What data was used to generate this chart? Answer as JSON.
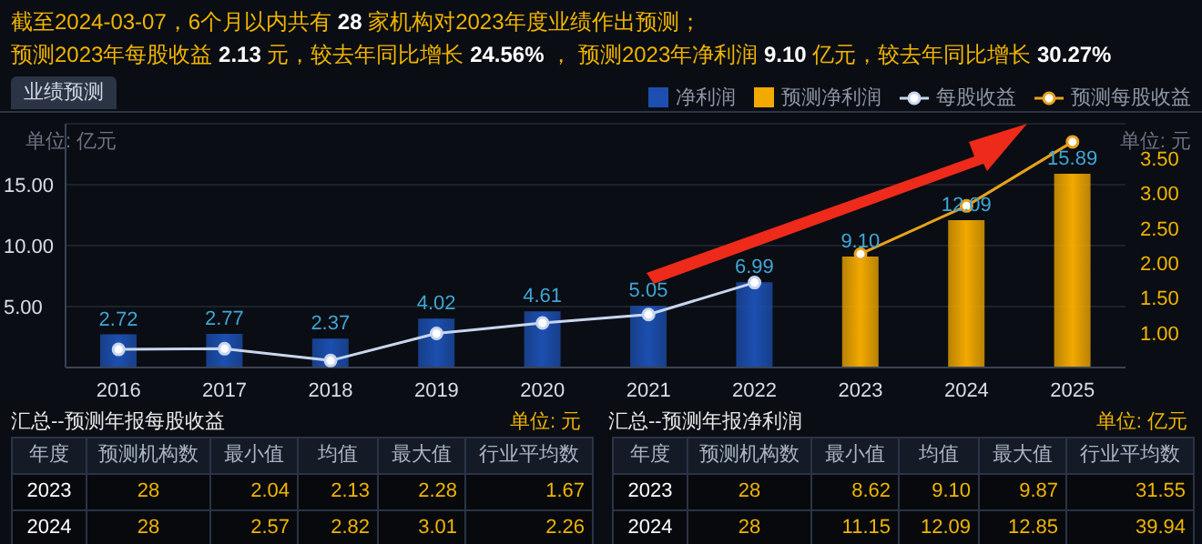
{
  "chart_data": {
    "type": "bar",
    "title": "截至2024-03-07，6个月以内共有 28 家机构对2023年度业绩作出预测；",
    "subtitle": "预测2023年每股收益 2.13 元，较去年同比增长 24.56% ， 预测2023年净利润 9.10 亿元，较去年同比增长 30.27%",
    "ylabel": "单位: 亿元",
    "y2label": "单位: 元",
    "categories": [
      "2016",
      "2017",
      "2018",
      "2019",
      "2020",
      "2021",
      "2022",
      "2023",
      "2024",
      "2025"
    ],
    "series": [
      {
        "name": "净利润",
        "color": "#1c4fb0",
        "values": [
          2.72,
          2.77,
          2.37,
          4.02,
          4.61,
          5.05,
          6.99,
          null,
          null,
          null
        ],
        "value_labels": [
          "2.72",
          "2.77",
          "2.37",
          "4.02",
          "4.61",
          "5.05",
          "6.99",
          null,
          null,
          null
        ]
      },
      {
        "name": "预测净利润",
        "color": "#f2a900",
        "values": [
          null,
          null,
          null,
          null,
          null,
          null,
          null,
          9.1,
          12.09,
          15.89
        ],
        "value_labels": [
          null,
          null,
          null,
          null,
          null,
          null,
          null,
          "9.10",
          "12.09",
          "15.89"
        ]
      },
      {
        "name": "每股收益",
        "type": "line",
        "axis": "y2",
        "color": "#c8d6ee",
        "values": [
          0.76,
          0.77,
          0.6,
          0.99,
          1.14,
          1.26,
          1.72,
          null,
          null,
          null
        ]
      },
      {
        "name": "预测每股收益",
        "type": "line",
        "axis": "y2",
        "color": "#e8a21a",
        "values": [
          null,
          null,
          null,
          null,
          null,
          null,
          null,
          2.13,
          2.82,
          3.74
        ]
      }
    ],
    "ylim": [
      0,
      20
    ],
    "yticks": [
      {
        "value": 5,
        "label": "5.00"
      },
      {
        "value": 10,
        "label": "10.00"
      },
      {
        "value": 15,
        "label": "15.00"
      }
    ],
    "y2lim": [
      0.5,
      4
    ],
    "y2ticks": [
      {
        "value": 1,
        "label": "1.00"
      },
      {
        "value": 1.5,
        "label": "1.50"
      },
      {
        "value": 2,
        "label": "2.00"
      },
      {
        "value": 2.5,
        "label": "2.50"
      },
      {
        "value": 3,
        "label": "3.00"
      },
      {
        "value": 3.5,
        "label": "3.50"
      }
    ],
    "grid": "y",
    "legend": "top right",
    "marker": "circle",
    "annotations": [
      "业绩预测",
      "汇总--预测年报每股收益",
      "单位: 元",
      "汇总--预测年报净利润",
      "单位: 亿元",
      "年度",
      "预测机构数",
      "最小值",
      "均值",
      "最大值",
      "行业平均数",
      "2023",
      "28",
      "2.04",
      "2.13",
      "2.28",
      "1.67",
      "2024",
      "28",
      "2.57",
      "2.82",
      "3.01",
      "2.26",
      "年度",
      "预测机构数",
      "最小值",
      "均值",
      "最大值",
      "行业平均数",
      "2023",
      "28",
      "8.62",
      "9.10",
      "9.87",
      "31.55",
      "2024",
      "28",
      "11.15",
      "12.09",
      "12.85",
      "39.94"
    ]
  }
}
